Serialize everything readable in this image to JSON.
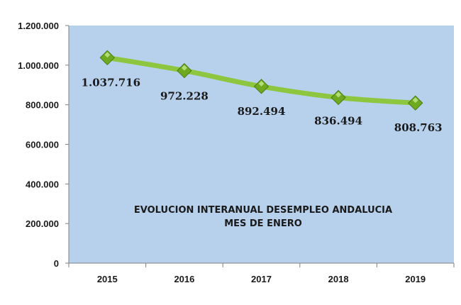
{
  "chart_data": {
    "type": "line",
    "title": "EVOLUCION INTERANUAL  DESEMPLEO ANDALUCIA",
    "subtitle": "MES DE ENERO",
    "xlabel": "",
    "ylabel": "",
    "categories": [
      "2015",
      "2016",
      "2017",
      "2018",
      "2019"
    ],
    "series": [
      {
        "name": "Desempleo Andalucía",
        "values": [
          1037716,
          972228,
          892494,
          836494,
          808763
        ],
        "labels": [
          "1.037.716",
          "972.228",
          "892.494",
          "836.494",
          "808.763"
        ]
      }
    ],
    "ylim": [
      0,
      1200000
    ],
    "yticks": [
      0,
      200000,
      400000,
      600000,
      800000,
      1000000,
      1200000
    ],
    "ytick_labels": [
      "0",
      "200.000",
      "400.000",
      "600.000",
      "800.000",
      "1.000.000",
      "1.200.000"
    ],
    "grid": false,
    "legend": "none",
    "colors": {
      "plot_background": "#b7d1ec",
      "line": "#8dc63f",
      "marker": "#6eaa1f",
      "axis": "#7f7f7f"
    }
  }
}
